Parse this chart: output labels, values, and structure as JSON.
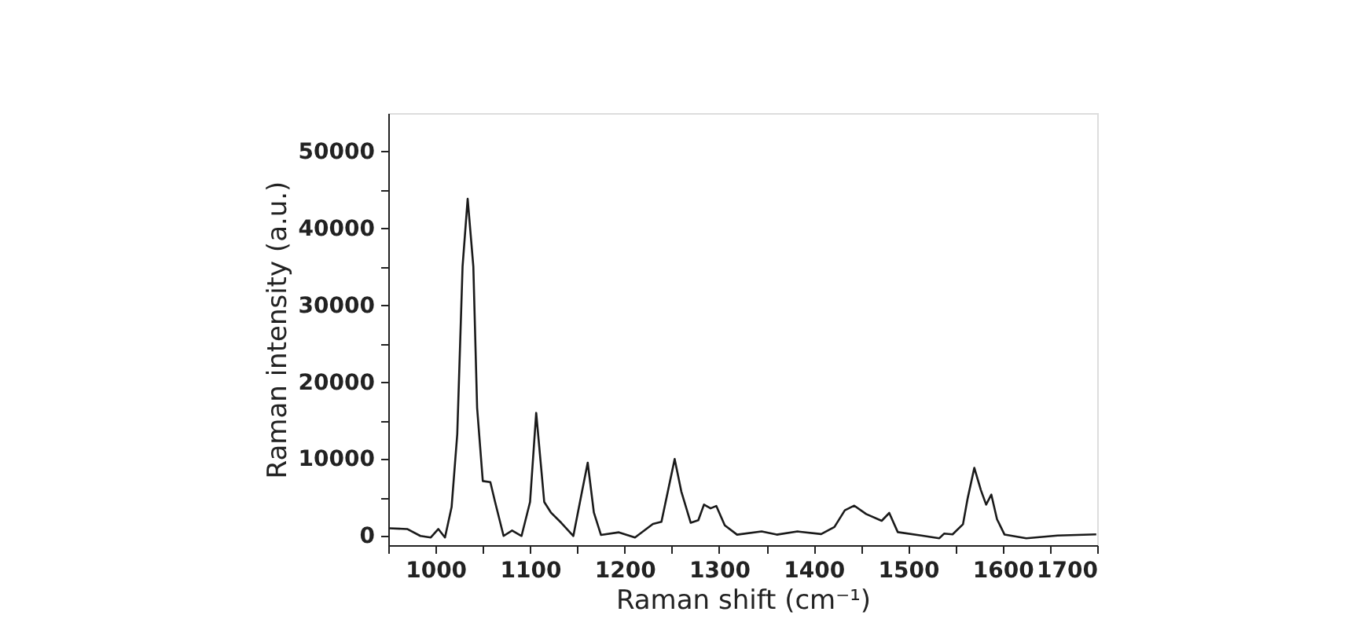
{
  "chart_data": {
    "type": "line",
    "xlabel": "Raman shift (cm⁻¹)",
    "ylabel": "Raman intensity (a.u.)",
    "xlim": [
      950,
      1700
    ],
    "ylim": [
      -1200,
      55000
    ],
    "xticks": [
      {
        "value": 950,
        "label": null
      },
      1000,
      {
        "value": 1050,
        "label": null
      },
      1100,
      {
        "value": 1150,
        "label": null
      },
      1200,
      {
        "value": 1250,
        "label": null
      },
      1300,
      {
        "value": 1350,
        "label": null
      },
      1400,
      {
        "value": 1450,
        "label": null
      },
      1500,
      {
        "value": 1550,
        "label": null
      },
      1600,
      {
        "value": 1650,
        "label": null
      },
      1700
    ],
    "yticks": [
      0,
      {
        "value": 5000,
        "label": null
      },
      10000,
      {
        "value": 15000,
        "label": null
      },
      20000,
      {
        "value": 25000,
        "label": null
      },
      30000,
      {
        "value": 35000,
        "label": null
      },
      40000,
      {
        "value": 45000,
        "label": null
      },
      50000
    ],
    "grid": false,
    "legend": false,
    "marker": "none",
    "line_style": "solid",
    "series": [
      {
        "color": "#1a1a1a",
        "x": [
          951,
          970,
          984,
          995,
          1003,
          1010,
          1017,
          1023,
          1028.6,
          1034,
          1040,
          1044,
          1050,
          1058,
          1063,
          1072,
          1081,
          1091,
          1100,
          1106.5,
          1115,
          1122,
          1133,
          1145.8,
          1155,
          1161,
          1167.5,
          1175,
          1194,
          1211,
          1230,
          1239,
          1253,
          1260,
          1270,
          1278,
          1284,
          1291,
          1297,
          1306,
          1319,
          1345,
          1361,
          1383,
          1408,
          1422,
          1433,
          1443,
          1455.6,
          1472,
          1480,
          1489,
          1514,
          1533,
          1538,
          1547,
          1558,
          1563,
          1570,
          1577,
          1582.5,
          1588,
          1594,
          1602,
          1625,
          1658,
          1699
        ],
        "values": [
          1000,
          900,
          0,
          -200,
          900,
          -200,
          3750,
          13260,
          35030,
          43860,
          35030,
          16670,
          7140,
          7000,
          4420,
          0,
          700,
          0,
          4420,
          16000,
          4420,
          3060,
          1710,
          0,
          5790,
          9530,
          3060,
          130,
          470,
          -200,
          1560,
          1840,
          10000,
          5790,
          1710,
          2040,
          4080,
          3590,
          3900,
          1380,
          170,
          580,
          170,
          580,
          240,
          1160,
          3330,
          3940,
          2850,
          1970,
          2990,
          500,
          50,
          -300,
          300,
          200,
          1520,
          4920,
          8860,
          5940,
          4080,
          5370,
          2170,
          170,
          -300,
          50,
          200
        ]
      }
    ]
  }
}
